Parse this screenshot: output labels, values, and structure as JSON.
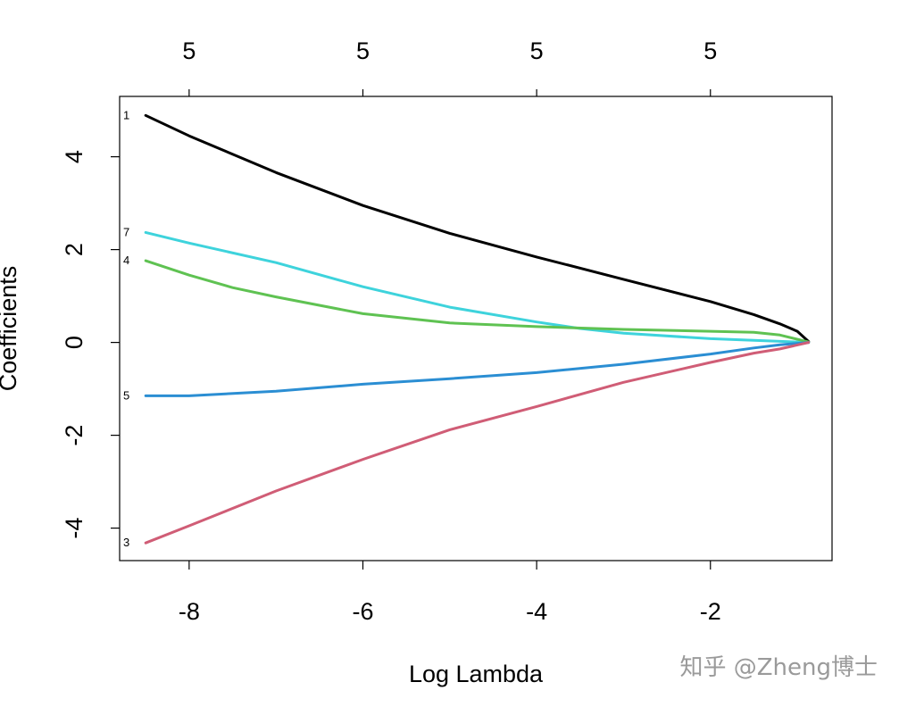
{
  "chart_data": {
    "type": "line",
    "title": "",
    "xlabel": "Log Lambda",
    "ylabel": "Coefficients",
    "xlim": [
      -8.8,
      -0.6
    ],
    "ylim": [
      -4.7,
      5.3
    ],
    "x_ticks": [
      -8,
      -6,
      -4,
      -2
    ],
    "x_tick_labels": [
      "-8",
      "-6",
      "-4",
      "-2"
    ],
    "y_ticks": [
      -4,
      -2,
      0,
      2,
      4
    ],
    "y_tick_labels": [
      "-4",
      "-2",
      "0",
      "2",
      "4"
    ],
    "top_axis": {
      "ticks": [
        -8,
        -6,
        -4,
        -2
      ],
      "labels": [
        "5",
        "5",
        "5",
        "5"
      ]
    },
    "grid": false,
    "series": [
      {
        "label": "1",
        "color": "#000000",
        "points": [
          [
            -8.5,
            4.89
          ],
          [
            -8.0,
            4.45
          ],
          [
            -7.0,
            3.66
          ],
          [
            -6.0,
            2.95
          ],
          [
            -5.0,
            2.35
          ],
          [
            -4.0,
            1.84
          ],
          [
            -3.0,
            1.36
          ],
          [
            -2.0,
            0.88
          ],
          [
            -1.5,
            0.6
          ],
          [
            -1.2,
            0.4
          ],
          [
            -1.0,
            0.24
          ],
          [
            -0.87,
            0.02
          ]
        ]
      },
      {
        "label": "7",
        "color": "#3ed3dc",
        "points": [
          [
            -8.5,
            2.37
          ],
          [
            -8.0,
            2.14
          ],
          [
            -7.0,
            1.72
          ],
          [
            -6.0,
            1.2
          ],
          [
            -5.0,
            0.76
          ],
          [
            -4.0,
            0.44
          ],
          [
            -3.5,
            0.3
          ],
          [
            -3.0,
            0.2
          ],
          [
            -2.0,
            0.08
          ],
          [
            -1.0,
            0.01
          ],
          [
            -0.87,
            0.0
          ]
        ]
      },
      {
        "label": "4",
        "color": "#5fc252",
        "points": [
          [
            -8.5,
            1.76
          ],
          [
            -8.0,
            1.45
          ],
          [
            -7.5,
            1.18
          ],
          [
            -7.0,
            0.98
          ],
          [
            -6.0,
            0.62
          ],
          [
            -5.0,
            0.42
          ],
          [
            -4.0,
            0.34
          ],
          [
            -3.0,
            0.28
          ],
          [
            -2.0,
            0.24
          ],
          [
            -1.5,
            0.22
          ],
          [
            -1.2,
            0.16
          ],
          [
            -0.87,
            0.01
          ]
        ]
      },
      {
        "label": "5",
        "color": "#2b8ed3",
        "points": [
          [
            -8.5,
            -1.15
          ],
          [
            -8.0,
            -1.15
          ],
          [
            -7.0,
            -1.05
          ],
          [
            -6.0,
            -0.9
          ],
          [
            -5.0,
            -0.78
          ],
          [
            -4.0,
            -0.65
          ],
          [
            -3.0,
            -0.47
          ],
          [
            -2.0,
            -0.25
          ],
          [
            -1.5,
            -0.12
          ],
          [
            -1.2,
            -0.05
          ],
          [
            -0.87,
            0.0
          ]
        ]
      },
      {
        "label": "3",
        "color": "#d05d76",
        "points": [
          [
            -8.5,
            -4.32
          ],
          [
            -8.0,
            -3.95
          ],
          [
            -7.0,
            -3.2
          ],
          [
            -6.0,
            -2.52
          ],
          [
            -5.0,
            -1.88
          ],
          [
            -4.0,
            -1.38
          ],
          [
            -3.0,
            -0.86
          ],
          [
            -2.0,
            -0.43
          ],
          [
            -1.5,
            -0.23
          ],
          [
            -1.2,
            -0.14
          ],
          [
            -0.87,
            0.0
          ]
        ]
      }
    ]
  },
  "watermark": "知乎 @Zheng博士"
}
